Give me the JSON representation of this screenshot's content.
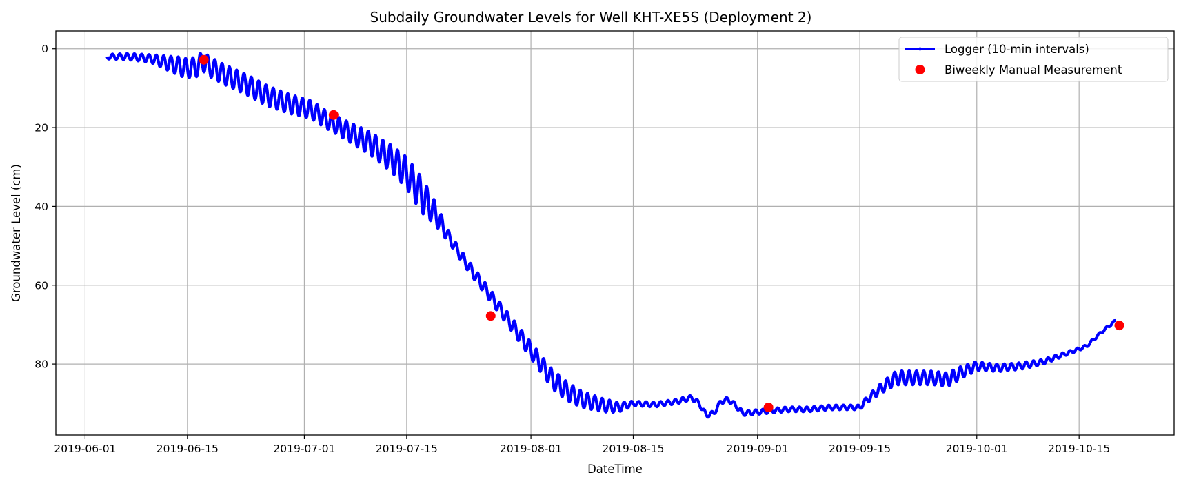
{
  "chart_data": {
    "type": "line",
    "title": "Subdaily Groundwater Levels for Well KHT-XE5S (Deployment 2)",
    "xlabel": "DateTime",
    "ylabel": "Groundwater Level (cm)",
    "x_type": "date",
    "xlim": [
      "2019-05-28",
      "2019-10-28"
    ],
    "ylim": [
      98,
      -4.5
    ],
    "y_inverted": true,
    "x_ticks": [
      "2019-06-01",
      "2019-06-15",
      "2019-07-01",
      "2019-07-15",
      "2019-08-01",
      "2019-08-15",
      "2019-09-01",
      "2019-09-15",
      "2019-10-01",
      "2019-10-15"
    ],
    "y_ticks": [
      0,
      20,
      40,
      60,
      80
    ],
    "grid": true,
    "legend_position": "top-right",
    "series": [
      {
        "name": "Logger (10-min intervals)",
        "kind": "line",
        "color": "#0000ff",
        "note_interval": "subdaily, 10-min",
        "daily_amplitude_cm": [
          [
            "2019-06-04",
            0.6
          ],
          [
            "2019-06-10",
            1.0
          ],
          [
            "2019-06-14",
            2.4
          ],
          [
            "2019-06-17",
            2.5
          ],
          [
            "2019-06-25",
            2.6
          ],
          [
            "2019-07-05",
            2.2
          ],
          [
            "2019-07-12",
            3.2
          ],
          [
            "2019-07-17",
            4.5
          ],
          [
            "2019-07-21",
            1.3
          ],
          [
            "2019-07-28",
            1.6
          ],
          [
            "2019-08-05",
            2.5
          ],
          [
            "2019-08-12",
            1.5
          ],
          [
            "2019-08-15",
            0.6
          ],
          [
            "2019-09-15",
            0.6
          ],
          [
            "2019-09-20",
            1.8
          ],
          [
            "2019-09-28",
            1.7
          ],
          [
            "2019-10-02",
            1.0
          ],
          [
            "2019-10-08",
            0.8
          ],
          [
            "2019-10-14",
            0.4
          ],
          [
            "2019-10-20",
            0.3
          ]
        ],
        "points": [
          [
            "2019-06-04",
            2.0
          ],
          [
            "2019-06-07",
            2.0
          ],
          [
            "2019-06-10",
            2.5
          ],
          [
            "2019-06-13",
            4.0
          ],
          [
            "2019-06-15",
            5.0
          ],
          [
            "2019-06-16 12:00",
            4.5
          ],
          [
            "2019-06-17",
            3.0
          ],
          [
            "2019-06-18",
            4.5
          ],
          [
            "2019-06-20",
            6.5
          ],
          [
            "2019-06-23",
            9.0
          ],
          [
            "2019-06-26",
            12.0
          ],
          [
            "2019-06-29",
            14.0
          ],
          [
            "2019-07-02",
            15.5
          ],
          [
            "2019-07-04",
            18.0
          ],
          [
            "2019-07-07",
            21.0
          ],
          [
            "2019-07-10",
            24.0
          ],
          [
            "2019-07-13",
            28.0
          ],
          [
            "2019-07-15",
            31.5
          ],
          [
            "2019-07-17",
            37.0
          ],
          [
            "2019-07-19",
            42.0
          ],
          [
            "2019-07-21",
            48.5
          ],
          [
            "2019-07-23",
            54.0
          ],
          [
            "2019-07-25",
            59.0
          ],
          [
            "2019-07-27",
            64.0
          ],
          [
            "2019-07-29",
            69.0
          ],
          [
            "2019-07-31",
            74.0
          ],
          [
            "2019-08-02",
            79.0
          ],
          [
            "2019-08-04",
            84.0
          ],
          [
            "2019-08-06",
            87.0
          ],
          [
            "2019-08-08",
            89.0
          ],
          [
            "2019-08-11",
            90.5
          ],
          [
            "2019-08-13",
            91.0
          ],
          [
            "2019-08-15",
            90.0
          ],
          [
            "2019-08-18",
            90.3
          ],
          [
            "2019-08-21",
            89.5
          ],
          [
            "2019-08-23",
            88.5
          ],
          [
            "2019-08-24",
            90.0
          ],
          [
            "2019-08-25",
            93.0
          ],
          [
            "2019-08-26",
            92.5
          ],
          [
            "2019-08-27",
            89.5
          ],
          [
            "2019-08-28",
            89.0
          ],
          [
            "2019-08-29",
            90.5
          ],
          [
            "2019-08-30",
            92.5
          ],
          [
            "2019-09-02",
            92.0
          ],
          [
            "2019-09-05",
            91.5
          ],
          [
            "2019-09-08",
            91.5
          ],
          [
            "2019-09-11",
            91.0
          ],
          [
            "2019-09-14",
            91.0
          ],
          [
            "2019-09-15",
            91.0
          ],
          [
            "2019-09-16",
            89.0
          ],
          [
            "2019-09-18",
            86.0
          ],
          [
            "2019-09-20",
            83.5
          ],
          [
            "2019-09-22",
            83.5
          ],
          [
            "2019-09-25",
            83.5
          ],
          [
            "2019-09-27",
            84.0
          ],
          [
            "2019-09-29",
            82.0
          ],
          [
            "2019-10-01",
            80.5
          ],
          [
            "2019-10-04",
            81.0
          ],
          [
            "2019-10-07",
            80.5
          ],
          [
            "2019-10-10",
            79.5
          ],
          [
            "2019-10-13",
            77.5
          ],
          [
            "2019-10-16",
            75.5
          ],
          [
            "2019-10-18",
            72.0
          ],
          [
            "2019-10-20",
            69.0
          ]
        ]
      },
      {
        "name": "Biweekly Manual Measurement",
        "kind": "scatter",
        "color": "#ff0000",
        "points": [
          [
            "2019-06-17 06:00",
            2.8
          ],
          [
            "2019-07-05",
            16.8
          ],
          [
            "2019-07-26 12:00",
            67.8
          ],
          [
            "2019-09-02 12:00",
            91.0
          ],
          [
            "2019-10-20 12:00",
            70.2
          ]
        ]
      }
    ]
  }
}
